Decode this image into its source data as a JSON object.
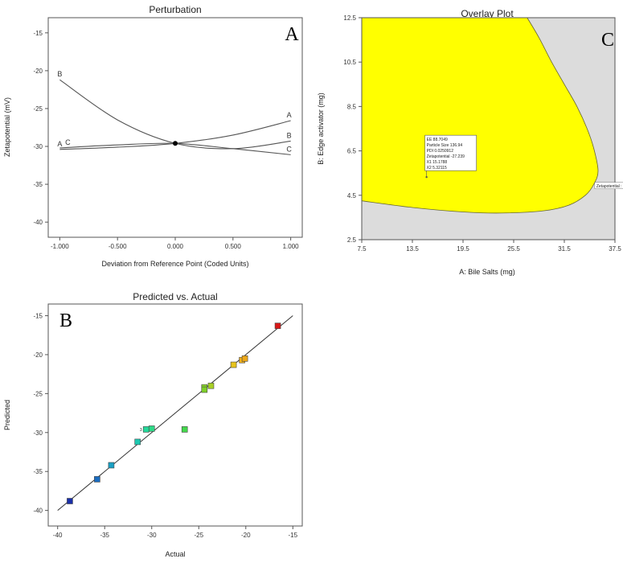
{
  "chart_data": [
    {
      "panel_label": "A",
      "type": "line",
      "title": "Perturbation",
      "xlabel": "Deviation from Reference Point (Coded Units)",
      "ylabel": "Zetapotential (mV)",
      "xlim": [
        -1.1,
        1.1
      ],
      "ylim": [
        -42,
        -13
      ],
      "xticks": [
        -1.0,
        -0.5,
        0.0,
        0.5,
        1.0
      ],
      "xtick_labels": [
        "-1.000",
        "-0.500",
        "0.000",
        "0.500",
        "1.000"
      ],
      "yticks": [
        -15,
        -20,
        -25,
        -30,
        -35,
        -40
      ],
      "ytick_labels": [
        "-15",
        "-20",
        "-25",
        "-30",
        "-35",
        "-40"
      ],
      "reference_point": {
        "x": 0,
        "y": -29.6
      },
      "series": [
        {
          "name": "A",
          "x": [
            -1,
            -0.5,
            0,
            0.5,
            1
          ],
          "y": [
            -30.4,
            -30.1,
            -29.6,
            -28.5,
            -26.6
          ],
          "start_label": "A",
          "end_label": "A"
        },
        {
          "name": "B",
          "x": [
            -1,
            -0.5,
            0,
            0.5,
            1
          ],
          "y": [
            -21.2,
            -26.5,
            -29.6,
            -30.3,
            -29.3
          ],
          "start_label": "B",
          "end_label": "B"
        },
        {
          "name": "C",
          "x": [
            -1,
            -0.5,
            0,
            0.5,
            1
          ],
          "y": [
            -30.2,
            -29.8,
            -29.6,
            -30.3,
            -31.1
          ],
          "start_label": "C",
          "end_label": "C"
        }
      ]
    },
    {
      "panel_label": "B",
      "type": "scatter",
      "title": "Predicted vs. Actual",
      "xlabel": "Actual",
      "ylabel": "Predicted",
      "xlim": [
        -41,
        -14
      ],
      "ylim": [
        -42,
        -13.5
      ],
      "xticks": [
        -40,
        -35,
        -30,
        -25,
        -20,
        -15
      ],
      "xtick_labels": [
        "-40",
        "-35",
        "-30",
        "-25",
        "-20",
        "-15"
      ],
      "yticks": [
        -15,
        -20,
        -25,
        -30,
        -35,
        -40
      ],
      "ytick_labels": [
        "-15",
        "-20",
        "-25",
        "-30",
        "-35",
        "-40"
      ],
      "fit_line": {
        "x": [
          -40,
          -15
        ],
        "y": [
          -40,
          -15
        ]
      },
      "point_annotation": {
        "text": "3",
        "x": -30.6,
        "y": -29.6
      },
      "points": [
        {
          "x": -38.7,
          "y": -38.8,
          "color": "#1a2fa8"
        },
        {
          "x": -35.8,
          "y": -36.0,
          "color": "#1a6cc0"
        },
        {
          "x": -34.3,
          "y": -34.2,
          "color": "#1aa0c4"
        },
        {
          "x": -31.5,
          "y": -31.2,
          "color": "#1cc8b0"
        },
        {
          "x": -30.6,
          "y": -29.6,
          "color": "#24d89a"
        },
        {
          "x": -30.0,
          "y": -29.5,
          "color": "#2ed886"
        },
        {
          "x": -26.5,
          "y": -29.6,
          "color": "#44d84c"
        },
        {
          "x": -24.4,
          "y": -24.2,
          "color": "#88d42a"
        },
        {
          "x": -24.4,
          "y": -24.5,
          "color": "#7fd028"
        },
        {
          "x": -23.7,
          "y": -24.0,
          "color": "#a8d024"
        },
        {
          "x": -21.3,
          "y": -21.3,
          "color": "#e8c41c"
        },
        {
          "x": -20.4,
          "y": -20.7,
          "color": "#f0b01a"
        },
        {
          "x": -20.1,
          "y": -20.5,
          "color": "#eca81a"
        },
        {
          "x": -16.6,
          "y": -16.3,
          "color": "#d81818"
        }
      ]
    },
    {
      "panel_label": "C",
      "type": "area",
      "title": "Overlay Plot",
      "xlabel": "A: Bile Salts (mg)",
      "ylabel": "B: Edge activator (mg)",
      "xlim": [
        7.5,
        37.5
      ],
      "ylim": [
        2.5,
        12.5
      ],
      "xticks": [
        7.5,
        13.5,
        19.5,
        25.5,
        31.5,
        37.5
      ],
      "xtick_labels": [
        "7.5",
        "13.5",
        "19.5",
        "25.5",
        "31.5",
        "37.5"
      ],
      "yticks": [
        2.5,
        4.5,
        6.5,
        8.5,
        10.5,
        12.5
      ],
      "ytick_labels": [
        "2.5",
        "4.5",
        "6.5",
        "8.5",
        "10.5",
        "12.5"
      ],
      "colors": {
        "feasible": "#ffff00",
        "infeasible": "#dcdcdc",
        "boundary": "#666633"
      },
      "feasible_region_boundary": {
        "x": [
          7.5,
          13.5,
          19.5,
          24.0,
          29.0,
          32.0,
          34.0,
          35.0,
          35.5,
          35.0,
          34.2,
          33.0,
          31.5,
          30.0,
          28.5,
          27.1
        ],
        "y": [
          4.25,
          3.95,
          3.75,
          3.7,
          3.8,
          4.05,
          4.5,
          5.0,
          5.6,
          6.6,
          7.5,
          8.5,
          9.5,
          10.5,
          11.6,
          12.5
        ]
      },
      "contour_label": {
        "text": "Zetapotential : -16.59",
        "x": 35.2,
        "y": 4.9
      },
      "flag": {
        "x": 15.18,
        "y": 5.32,
        "lines": [
          "EE   88.7049",
          "Particle Size   136.94",
          "PDI   0.0250912",
          "Zetapotential   -27.239",
          "X1   15.1788",
          "X2   5.32115"
        ]
      }
    }
  ]
}
